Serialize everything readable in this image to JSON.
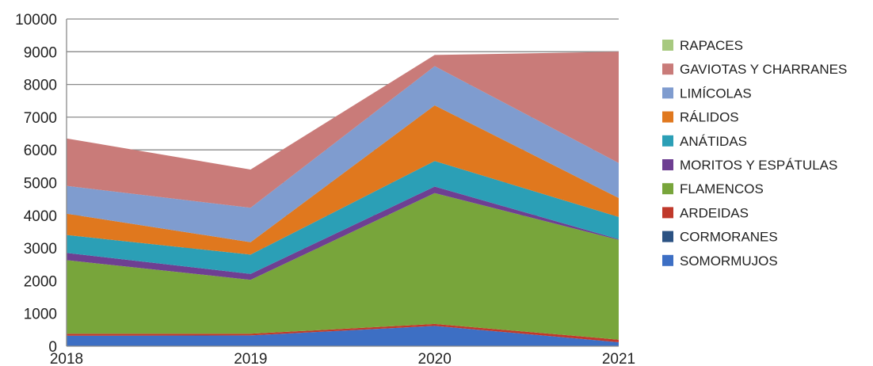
{
  "chart_data": {
    "type": "area",
    "stacked": true,
    "title": "",
    "xlabel": "",
    "ylabel": "",
    "categories": [
      "2018",
      "2019",
      "2020",
      "2021"
    ],
    "ylim": [
      0,
      10000
    ],
    "yticks": [
      0,
      1000,
      2000,
      3000,
      4000,
      5000,
      6000,
      7000,
      8000,
      9000,
      10000
    ],
    "grid": "horizontal",
    "legend_position": "right",
    "series": [
      {
        "name": "SOMORMUJOS",
        "color": "#3d6fc4",
        "values": [
          320,
          330,
          620,
          120
        ]
      },
      {
        "name": "CORMORANES",
        "color": "#2b5283",
        "values": [
          0,
          0,
          0,
          0
        ]
      },
      {
        "name": "ARDEIDAS",
        "color": "#c0392b",
        "values": [
          60,
          50,
          60,
          80
        ]
      },
      {
        "name": "FLAMENCOS",
        "color": "#78a53b",
        "values": [
          2250,
          1650,
          4000,
          3050
        ]
      },
      {
        "name": "MORITOS Y ESPÁTULAS",
        "color": "#6e3f92",
        "values": [
          220,
          180,
          200,
          20
        ]
      },
      {
        "name": "ANÁTIDAS",
        "color": "#2b9fb6",
        "values": [
          550,
          590,
          780,
          680
        ]
      },
      {
        "name": "RÁLIDOS",
        "color": "#e0781e",
        "values": [
          650,
          380,
          1700,
          580
        ]
      },
      {
        "name": "LIMÍCOLAS",
        "color": "#7f9ccf",
        "values": [
          850,
          1050,
          1200,
          1070
        ]
      },
      {
        "name": "GAVIOTAS Y CHARRANES",
        "color": "#c97b79",
        "values": [
          1450,
          1170,
          340,
          3400
        ]
      },
      {
        "name": "RAPACES",
        "color": "#a7c97f",
        "values": [
          0,
          0,
          0,
          0
        ]
      }
    ]
  }
}
